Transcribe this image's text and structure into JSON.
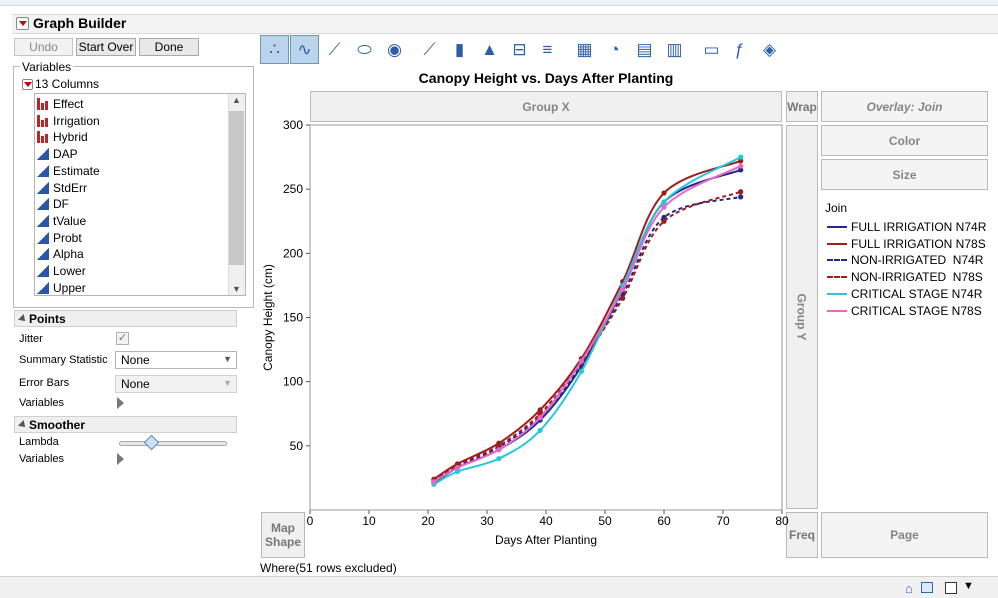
{
  "app": {
    "title": "Graph Builder"
  },
  "buttons": {
    "undo": "Undo",
    "start_over": "Start Over",
    "done": "Done"
  },
  "variables": {
    "legend": "Variables",
    "columns_header": "13 Columns",
    "columns": [
      {
        "name": "Effect",
        "type": "nominal"
      },
      {
        "name": "Irrigation",
        "type": "nominal"
      },
      {
        "name": "Hybrid",
        "type": "nominal"
      },
      {
        "name": "DAP",
        "type": "continuous"
      },
      {
        "name": "Estimate",
        "type": "continuous"
      },
      {
        "name": "StdErr",
        "type": "continuous"
      },
      {
        "name": "DF",
        "type": "continuous"
      },
      {
        "name": "tValue",
        "type": "continuous"
      },
      {
        "name": "Probt",
        "type": "continuous"
      },
      {
        "name": "Alpha",
        "type": "continuous"
      },
      {
        "name": "Lower",
        "type": "continuous"
      },
      {
        "name": "Upper",
        "type": "continuous"
      }
    ]
  },
  "points": {
    "header": "Points",
    "jitter_label": "Jitter",
    "jitter_checked": true,
    "summary_label": "Summary Statistic",
    "summary_value": "None",
    "error_label": "Error Bars",
    "error_value": "None",
    "variables_label": "Variables"
  },
  "smoother": {
    "header": "Smoother",
    "lambda_label": "Lambda",
    "lambda_value": 0.3,
    "variables_label": "Variables"
  },
  "toolbar": {
    "icons": [
      "points-icon",
      "smoother-icon",
      "line-of-fit-icon",
      "ellipse-icon",
      "contour-icon",
      "line-icon",
      "bar-icon",
      "area-icon",
      "box-plot-icon",
      "histogram-icon",
      "heatmap-icon",
      "pie-icon",
      "treemap-icon",
      "mosaic-icon",
      "caption-box-icon",
      "formula-icon",
      "map-shape-icon"
    ],
    "active": [
      "points-icon",
      "smoother-icon"
    ]
  },
  "zones": {
    "group_x": "Group X",
    "group_y": "Group Y",
    "wrap": "Wrap",
    "overlay": "Overlay: Join",
    "color": "Color",
    "size": "Size",
    "map_shape": "Map\nShape",
    "freq": "Freq",
    "page": "Page"
  },
  "legend": {
    "title": "Join"
  },
  "footer": {
    "where": "Where(51 rows excluded)"
  },
  "chart_data": {
    "type": "line",
    "title": "Canopy Height vs. Days After Planting",
    "xlabel": "Days After Planting",
    "ylabel": "Canopy Height (cm)",
    "xlim": [
      0,
      80
    ],
    "ylim": [
      0,
      300
    ],
    "xticks": [
      0,
      10,
      20,
      30,
      40,
      50,
      60,
      70,
      80
    ],
    "yticks": [
      50,
      100,
      150,
      200,
      250,
      300
    ],
    "grid": false,
    "legend_position": "right",
    "x": [
      21,
      25,
      32,
      39,
      46,
      53,
      60,
      73
    ],
    "series": [
      {
        "name": "FULL IRRIGATION N74R",
        "color": "#1f2a8c",
        "dash": false,
        "values": [
          21,
          33,
          47,
          70,
          112,
          172,
          240,
          265
        ]
      },
      {
        "name": "FULL IRRIGATION N78S",
        "color": "#a01c1c",
        "dash": false,
        "values": [
          24,
          36,
          52,
          78,
          118,
          178,
          247,
          272
        ]
      },
      {
        "name": "NON-IRRIGATED  N74R",
        "color": "#1f2a8c",
        "dash": true,
        "values": [
          22,
          34,
          49,
          73,
          113,
          168,
          228,
          244
        ]
      },
      {
        "name": "NON-IRRIGATED  N78S",
        "color": "#a01c1c",
        "dash": true,
        "values": [
          23,
          35,
          50,
          75,
          115,
          165,
          225,
          248
        ]
      },
      {
        "name": "CRITICAL STAGE N74R",
        "color": "#22c8dc",
        "dash": false,
        "values": [
          20,
          30,
          40,
          62,
          108,
          175,
          240,
          275
        ]
      },
      {
        "name": "CRITICAL STAGE N78S",
        "color": "#e868c8",
        "dash": false,
        "values": [
          22,
          33,
          47,
          72,
          116,
          172,
          236,
          268
        ]
      }
    ]
  }
}
